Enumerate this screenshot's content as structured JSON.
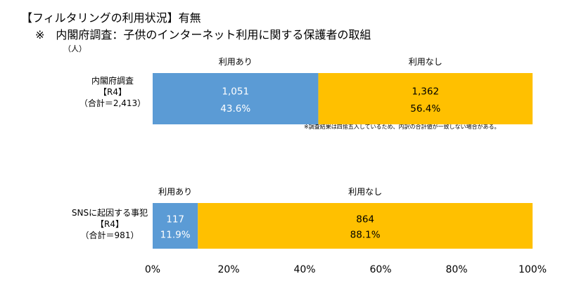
{
  "title": "【フィルタリングの利用状況】有無",
  "subtitle": "※　内閣府調査：子供のインターネット利用に関する保護者の取組",
  "unit": "（人）",
  "note": "※調査結果は四捨五入しているため、内訳の合計値が一致しない場合がある。",
  "colors": {
    "used": "#5b9bd5",
    "not_used": "#ffc000"
  },
  "chart_data": {
    "type": "bar",
    "orientation": "horizontal-stacked-100",
    "categories": [
      {
        "line1": "内閣府調査",
        "line2": "【R4】",
        "line3": "（合計＝2,413）"
      },
      {
        "line1": "SNSに起因する事犯",
        "line2": "【R4】",
        "line3": "（合計＝981）"
      }
    ],
    "series": [
      {
        "name": "利用あり",
        "color": "#5b9bd5",
        "values": [
          43.6,
          11.9
        ],
        "counts": [
          "1,051",
          "117"
        ],
        "percent_labels": [
          "43.6%",
          "11.9%"
        ]
      },
      {
        "name": "利用なし",
        "color": "#ffc000",
        "values": [
          56.4,
          88.1
        ],
        "counts": [
          "1,362",
          "864"
        ],
        "percent_labels": [
          "56.4%",
          "88.1%"
        ]
      }
    ],
    "xlim": [
      0,
      100
    ],
    "xticks": [
      "0%",
      "20%",
      "40%",
      "60%",
      "80%",
      "100%"
    ],
    "xtick_values": [
      0,
      20,
      40,
      60,
      80,
      100
    ]
  }
}
